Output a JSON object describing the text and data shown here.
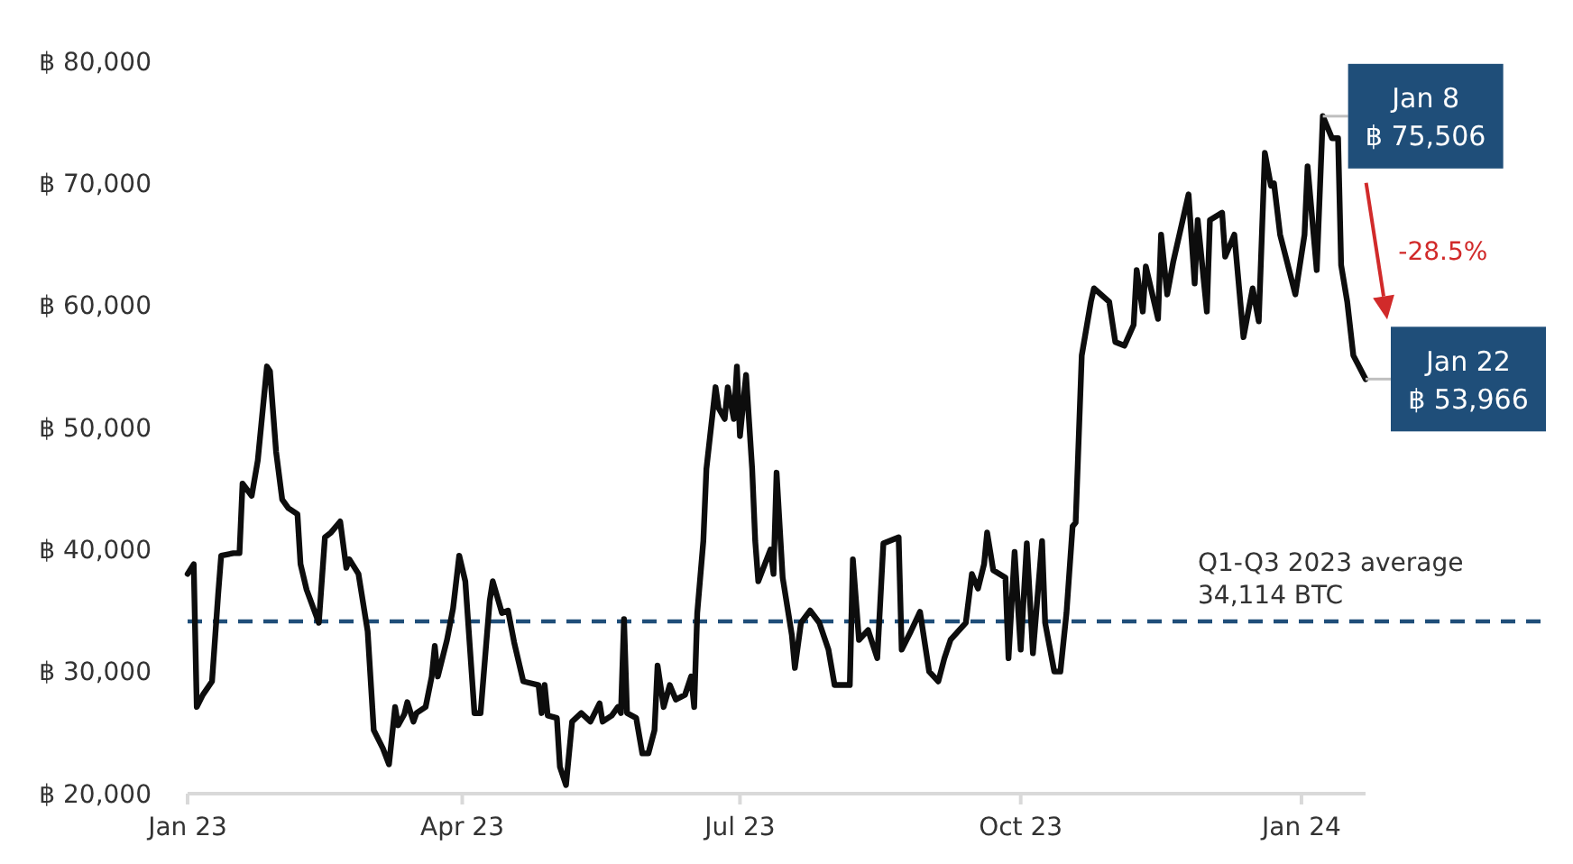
{
  "chart_data": {
    "type": "line",
    "x": [
      "2023-01-01",
      "2023-01-03",
      "2023-01-04",
      "2023-01-06",
      "2023-01-09",
      "2023-01-11",
      "2023-01-12",
      "2023-01-16",
      "2023-01-18",
      "2023-01-19",
      "2023-01-22",
      "2023-01-24",
      "2023-01-27",
      "2023-01-28",
      "2023-01-30",
      "2023-02-01",
      "2023-02-03",
      "2023-02-06",
      "2023-02-07",
      "2023-02-09",
      "2023-02-13",
      "2023-02-15",
      "2023-02-17",
      "2023-02-20",
      "2023-02-22",
      "2023-02-23",
      "2023-02-26",
      "2023-03-01",
      "2023-03-03",
      "2023-03-06",
      "2023-03-08",
      "2023-03-10",
      "2023-03-11",
      "2023-03-13",
      "2023-03-14",
      "2023-03-16",
      "2023-03-17",
      "2023-03-20",
      "2023-03-22",
      "2023-03-23",
      "2023-03-24",
      "2023-03-27",
      "2023-03-29",
      "2023-03-31",
      "2023-04-02",
      "2023-04-05",
      "2023-04-07",
      "2023-04-10",
      "2023-04-11",
      "2023-04-14",
      "2023-04-16",
      "2023-04-18",
      "2023-04-21",
      "2023-04-26",
      "2023-04-27",
      "2023-04-28",
      "2023-04-29",
      "2023-05-02",
      "2023-05-03",
      "2023-05-05",
      "2023-05-07",
      "2023-05-10",
      "2023-05-13",
      "2023-05-16",
      "2023-05-17",
      "2023-05-20",
      "2023-05-22",
      "2023-05-23",
      "2023-05-24",
      "2023-05-25",
      "2023-05-28",
      "2023-05-30",
      "2023-06-01",
      "2023-06-03",
      "2023-06-04",
      "2023-06-06",
      "2023-06-08",
      "2023-06-10",
      "2023-06-13",
      "2023-06-15",
      "2023-06-16",
      "2023-06-17",
      "2023-06-19",
      "2023-06-20",
      "2023-06-23",
      "2023-06-24",
      "2023-06-26",
      "2023-06-27",
      "2023-06-29",
      "2023-06-30",
      "2023-07-01",
      "2023-07-03",
      "2023-07-05",
      "2023-07-06",
      "2023-07-07",
      "2023-07-11",
      "2023-07-12",
      "2023-07-13",
      "2023-07-15",
      "2023-07-18",
      "2023-07-19",
      "2023-07-21",
      "2023-07-24",
      "2023-07-27",
      "2023-07-30",
      "2023-08-01",
      "2023-08-06",
      "2023-08-07",
      "2023-08-09",
      "2023-08-12",
      "2023-08-15",
      "2023-08-17",
      "2023-08-22",
      "2023-08-23",
      "2023-08-26",
      "2023-08-29",
      "2023-09-01",
      "2023-09-04",
      "2023-09-06",
      "2023-09-08",
      "2023-09-13",
      "2023-09-15",
      "2023-09-17",
      "2023-09-19",
      "2023-09-20",
      "2023-09-22",
      "2023-09-26",
      "2023-09-27",
      "2023-09-29",
      "2023-10-01",
      "2023-10-03",
      "2023-10-05",
      "2023-10-08",
      "2023-10-09",
      "2023-10-12",
      "2023-10-14",
      "2023-10-16",
      "2023-10-18",
      "2023-10-19",
      "2023-10-21",
      "2023-10-24",
      "2023-10-25",
      "2023-10-30",
      "2023-11-01",
      "2023-11-04",
      "2023-11-07",
      "2023-11-08",
      "2023-11-10",
      "2023-11-11",
      "2023-11-15",
      "2023-11-16",
      "2023-11-18",
      "2023-11-20",
      "2023-11-25",
      "2023-11-27",
      "2023-11-28",
      "2023-12-01",
      "2023-12-02",
      "2023-12-06",
      "2023-12-07",
      "2023-12-10",
      "2023-12-13",
      "2023-12-16",
      "2023-12-18",
      "2023-12-20",
      "2023-12-22",
      "2023-12-23",
      "2023-12-25",
      "2023-12-30",
      "2024-01-02",
      "2024-01-03",
      "2024-01-06",
      "2024-01-08",
      "2024-01-11",
      "2024-01-13",
      "2024-01-14",
      "2024-01-16",
      "2024-01-18",
      "2024-01-22"
    ],
    "series": [
      {
        "color": "#0d0d0d",
        "values": [
          38000,
          38800,
          27100,
          28100,
          29200,
          36300,
          39500,
          39700,
          39700,
          45400,
          44400,
          47300,
          55000,
          54600,
          48000,
          44100,
          43400,
          42900,
          38800,
          36700,
          34000,
          41000,
          41400,
          42300,
          38500,
          39200,
          38000,
          33300,
          25200,
          23700,
          22400,
          27100,
          25600,
          26500,
          27500,
          25900,
          26600,
          27100,
          29600,
          32100,
          29600,
          32600,
          35200,
          39500,
          37400,
          26600,
          26600,
          35800,
          37400,
          34800,
          35000,
          32400,
          29200,
          28900,
          26600,
          28900,
          26400,
          26200,
          22200,
          20700,
          25900,
          26600,
          25900,
          27400,
          25900,
          26400,
          27100,
          26600,
          34300,
          26600,
          26200,
          23300,
          23300,
          25200,
          30500,
          27100,
          28900,
          27700,
          28100,
          29600,
          27100,
          34800,
          40700,
          46600,
          53300,
          51600,
          50700,
          53300,
          50700,
          55000,
          49300,
          54300,
          46600,
          40700,
          37400,
          40000,
          38000,
          46300,
          37700,
          33000,
          30300,
          34000,
          35000,
          34000,
          31800,
          28900,
          28900,
          39200,
          32600,
          33400,
          31100,
          40500,
          41000,
          31800,
          33300,
          34900,
          30000,
          29200,
          31100,
          32600,
          34000,
          38000,
          36800,
          38800,
          41400,
          38300,
          37700,
          31100,
          39800,
          31800,
          40500,
          31500,
          40700,
          34000,
          30000,
          30000,
          34800,
          41900,
          42200,
          55900,
          60300,
          61400,
          60300,
          57000,
          56700,
          58400,
          62900,
          59500,
          63200,
          58900,
          65800,
          60900,
          63600,
          69100,
          61800,
          67000,
          59500,
          67000,
          67600,
          64000,
          65800,
          57400,
          61400,
          58700,
          72500,
          69800,
          70000,
          65800,
          60900,
          65800,
          71400,
          62900,
          75506,
          73700,
          73700,
          63300,
          60300,
          55900,
          53966
        ]
      }
    ],
    "xlim": [
      "2023-01-01",
      "2024-01-22"
    ],
    "xticks": [
      {
        "value": "2023-01-01",
        "label": "Jan 23"
      },
      {
        "value": "2023-04-01",
        "label": "Apr 23"
      },
      {
        "value": "2023-07-01",
        "label": "Jul 23"
      },
      {
        "value": "2023-10-01",
        "label": "Oct 23"
      },
      {
        "value": "2024-01-01",
        "label": "Jan 24"
      }
    ],
    "ylim": [
      20000,
      80000
    ],
    "yticks": [
      {
        "value": 20000,
        "label": "฿ 20,000"
      },
      {
        "value": 30000,
        "label": "฿ 30,000"
      },
      {
        "value": 40000,
        "label": "฿ 40,000"
      },
      {
        "value": 50000,
        "label": "฿ 50,000"
      },
      {
        "value": 60000,
        "label": "฿ 60,000"
      },
      {
        "value": 70000,
        "label": "฿ 70,000"
      },
      {
        "value": 80000,
        "label": "฿ 80,000"
      }
    ],
    "ref_lines": [
      {
        "axis": "y",
        "value": 34114,
        "label": "Q1-Q3 2023 average 34,114 BTC",
        "color": "#1f4e79",
        "line_style": "dashed"
      }
    ],
    "annotations": [
      {
        "text": "Jan 8\n฿ 75,506",
        "x": "2024-01-08",
        "y": 75506
      },
      {
        "text": "Jan 22\n฿ 53,966",
        "x": "2024-01-22",
        "y": 53966
      },
      "-28.5%"
    ],
    "grid": false,
    "line_style": "solid",
    "marker": "none"
  }
}
